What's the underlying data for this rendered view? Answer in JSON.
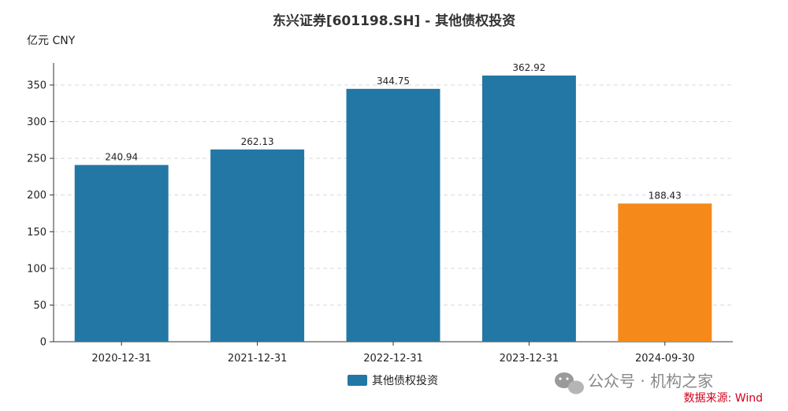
{
  "chart_data": {
    "type": "bar",
    "title": "东兴证券[601198.SH] - 其他债权投资",
    "unit_label": "亿元  CNY",
    "categories": [
      "2020-12-31",
      "2021-12-31",
      "2022-12-31",
      "2023-12-31",
      "2024-09-30"
    ],
    "values": [
      240.94,
      262.13,
      344.75,
      362.92,
      188.43
    ],
    "value_labels": [
      "240.94",
      "262.13",
      "344.75",
      "362.92",
      "188.43"
    ],
    "bar_colors": [
      "#2377a4",
      "#2377a4",
      "#2377a4",
      "#2377a4",
      "#f5891a"
    ],
    "series": [
      {
        "name": "其他债权投资",
        "color": "#2377a4"
      }
    ],
    "ylim": [
      0,
      380
    ],
    "yticks": [
      0,
      50,
      100,
      150,
      200,
      250,
      300,
      350
    ],
    "grid": true,
    "legend_position": "bottom-center"
  },
  "watermark": "公众号 · 机构之家",
  "source": "数据来源: Wind"
}
